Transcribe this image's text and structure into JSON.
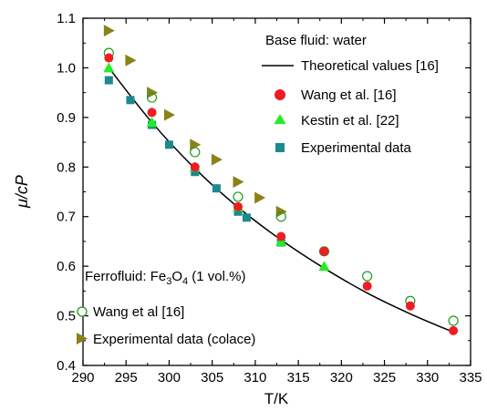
{
  "chart_data": {
    "type": "scatter",
    "xlabel": "T/K",
    "ylabel": "μ/cP",
    "xlim": [
      290,
      335
    ],
    "ylim": [
      0.4,
      1.1
    ],
    "x_ticks": [
      290,
      295,
      300,
      305,
      310,
      315,
      320,
      325,
      330,
      335
    ],
    "y_ticks": [
      0.4,
      0.5,
      0.6,
      0.7,
      0.8,
      0.9,
      1.0,
      1.1
    ],
    "x_tick_labels": [
      "290",
      "295",
      "300",
      "305",
      "310",
      "315",
      "320",
      "325",
      "330",
      "335"
    ],
    "y_tick_labels": [
      "0.4",
      "0.5",
      "0.6",
      "0.7",
      "0.8",
      "0.9",
      "1.0",
      "1.1"
    ],
    "grid": false,
    "annotations": {
      "base_fluid": "Base fluid: water",
      "ferrofluid_prefix": "Ferrofluid: Fe",
      "ferrofluid_sub1": "3",
      "ferrofluid_mid": "O",
      "ferrofluid_sub2": "4",
      "ferrofluid_suffix": " (1 vol.%)"
    },
    "series": [
      {
        "name": "Theoretical values [16]",
        "marker": "line",
        "color": "#000000",
        "x": [
          293,
          298,
          303,
          308,
          313,
          318,
          323,
          328,
          333
        ],
        "y": [
          1.0,
          0.89,
          0.797,
          0.719,
          0.653,
          0.596,
          0.546,
          0.504,
          0.467
        ]
      },
      {
        "name": "Wang et al. [16]",
        "marker": "circle-filled",
        "color": "#ee1c24",
        "x": [
          293,
          298,
          303,
          308,
          313,
          318,
          323,
          328,
          333
        ],
        "y": [
          1.02,
          0.91,
          0.8,
          0.72,
          0.66,
          0.63,
          0.56,
          0.52,
          0.47
        ]
      },
      {
        "name": "Kestin et al. [22]",
        "marker": "triangle-up",
        "color": "#22ee22",
        "x": [
          293,
          298,
          303,
          308,
          313,
          318
        ],
        "y": [
          1.0,
          0.89,
          0.8,
          0.72,
          0.65,
          0.6
        ]
      },
      {
        "name": "Experimental data",
        "marker": "square",
        "color": "#1c8a8e",
        "x": [
          293,
          295.5,
          298,
          300,
          303,
          305.5,
          308,
          309,
          313
        ],
        "y": [
          0.975,
          0.935,
          0.885,
          0.845,
          0.79,
          0.757,
          0.71,
          0.698,
          0.648
        ]
      },
      {
        "name": "Wang et al [16]",
        "marker": "circle-open",
        "color": "#1f9a1f",
        "x": [
          293,
          298,
          303,
          308,
          313,
          318,
          323,
          328,
          333
        ],
        "y": [
          1.03,
          0.94,
          0.83,
          0.74,
          0.7,
          0.63,
          0.58,
          0.53,
          0.49
        ]
      },
      {
        "name": "Experimental data (colace)",
        "marker": "triangle-right",
        "color": "#8b8217",
        "x": [
          293,
          295.5,
          298,
          300,
          303,
          305.5,
          308,
          310.5,
          313
        ],
        "y": [
          1.075,
          1.015,
          0.95,
          0.905,
          0.845,
          0.815,
          0.77,
          0.738,
          0.71
        ]
      }
    ]
  }
}
